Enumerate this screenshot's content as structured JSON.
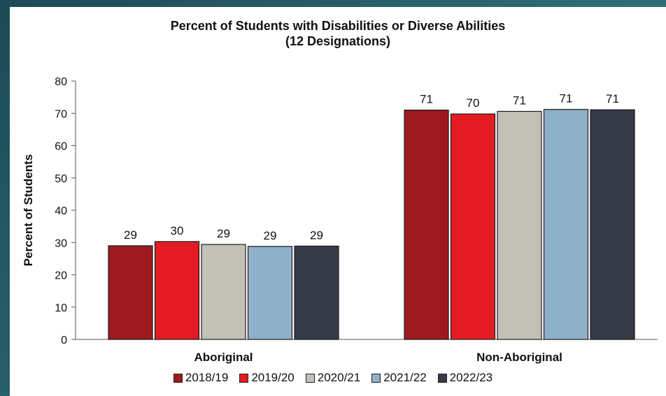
{
  "chart_data": {
    "type": "bar",
    "title": "Percent of Students with Disabilities or Diverse Abilities",
    "subtitle": "(12 Designations)",
    "ylabel": "Percent of Students",
    "xlabel": "",
    "ylim": [
      0,
      80
    ],
    "yticks": [
      0,
      10,
      20,
      30,
      40,
      50,
      60,
      70,
      80
    ],
    "categories": [
      "Aboriginal",
      "Non-Aboriginal"
    ],
    "series": [
      {
        "name": "2018/19",
        "color": "#9e1a1f",
        "values": [
          29,
          71
        ],
        "labels": [
          "29",
          "71"
        ]
      },
      {
        "name": "2019/20",
        "color": "#e31c24",
        "values": [
          30.3,
          69.8
        ],
        "labels": [
          "30",
          "70"
        ]
      },
      {
        "name": "2020/21",
        "color": "#c3c0b7",
        "values": [
          29.4,
          70.6
        ],
        "labels": [
          "29",
          "71"
        ]
      },
      {
        "name": "2021/22",
        "color": "#8fb0c9",
        "values": [
          28.8,
          71.2
        ],
        "labels": [
          "29",
          "71"
        ]
      },
      {
        "name": "2022/23",
        "color": "#363a46",
        "values": [
          28.9,
          71.1
        ],
        "labels": [
          "29",
          "71"
        ]
      }
    ],
    "legend_position": "bottom",
    "grid": false
  }
}
